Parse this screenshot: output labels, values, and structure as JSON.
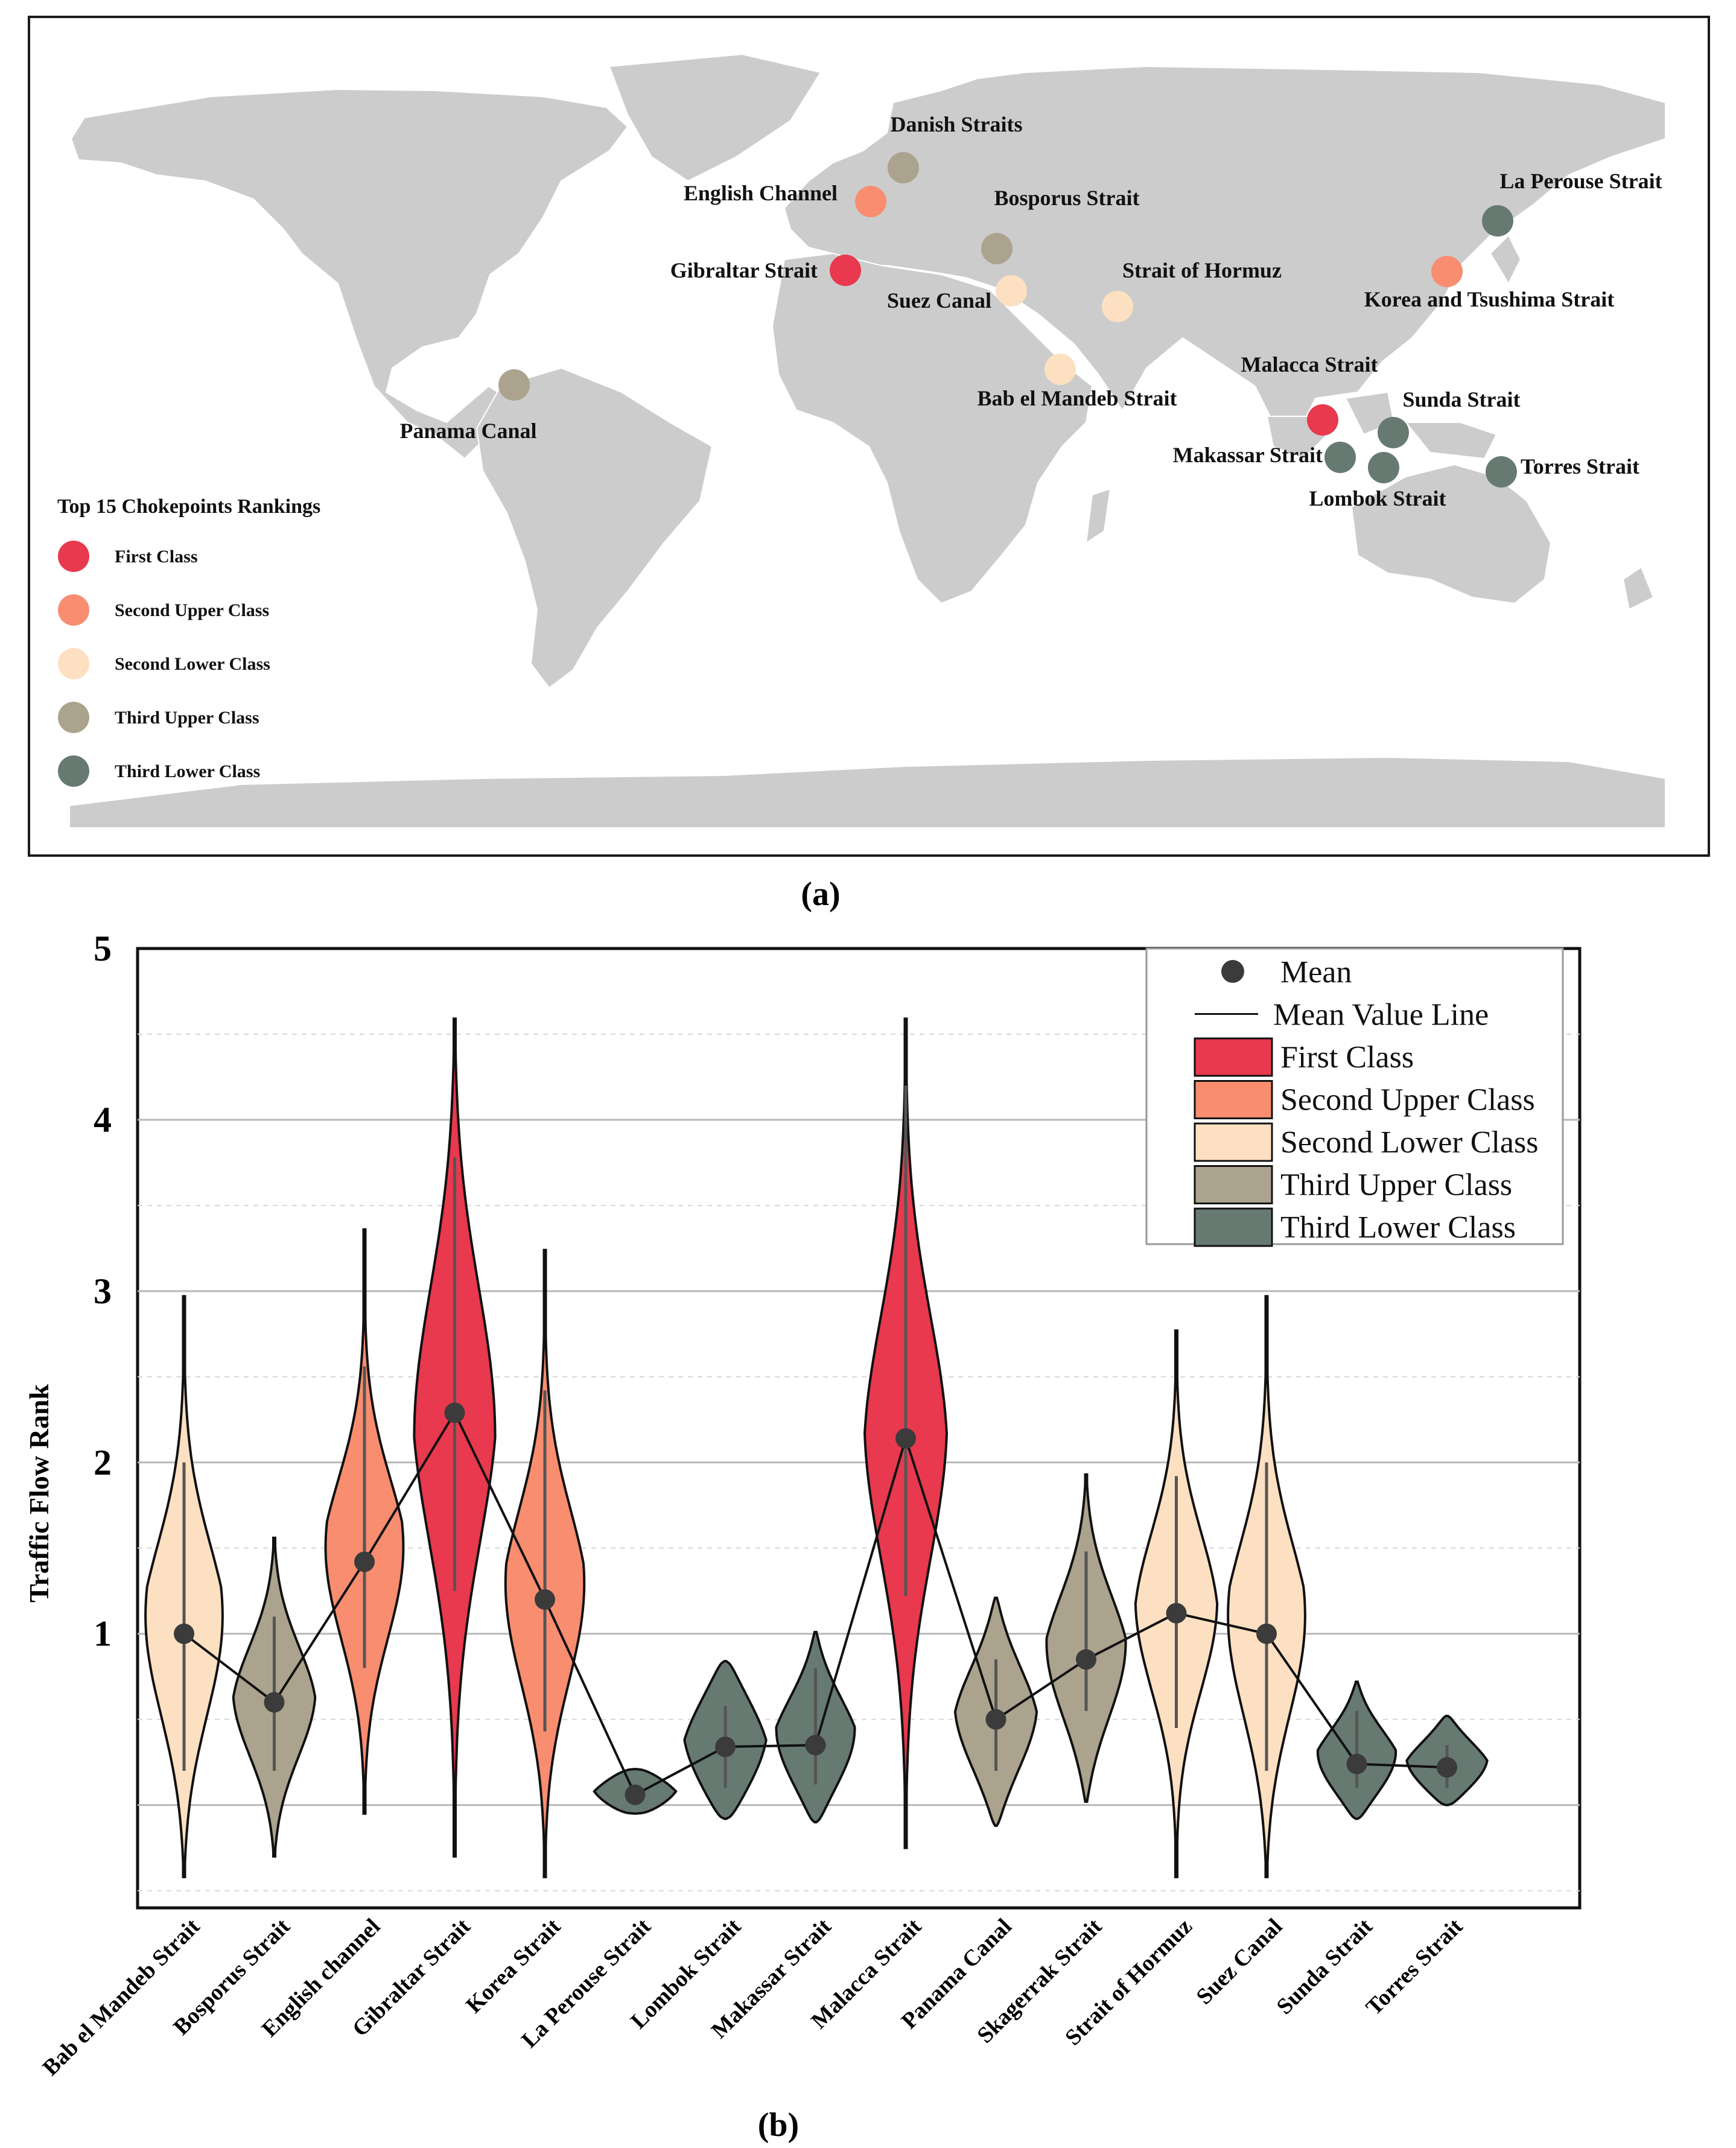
{
  "panel_a": {
    "caption": "(a)",
    "legend_title": "Top 15 Chokepoints Rankings",
    "classes": [
      {
        "key": "first",
        "label": "First Class",
        "color": "#e8394e"
      },
      {
        "key": "second_upper",
        "label": "Second Upper Class",
        "color": "#f98d70"
      },
      {
        "key": "second_lower",
        "label": "Second Lower Class",
        "color": "#fde0c2"
      },
      {
        "key": "third_upper",
        "label": "Third  Upper Class",
        "color": "#aba38d"
      },
      {
        "key": "third_lower",
        "label": "Third  Lower Class",
        "color": "#667a72"
      }
    ],
    "chokepoints": [
      {
        "name": "Danish Straits",
        "class": "third_upper"
      },
      {
        "name": "English Channel",
        "class": "second_upper"
      },
      {
        "name": "Bosporus Strait",
        "class": "third_upper"
      },
      {
        "name": "La Perouse Strait",
        "class": "third_lower"
      },
      {
        "name": "Gibraltar Strait",
        "class": "first"
      },
      {
        "name": "Suez Canal",
        "class": "second_lower"
      },
      {
        "name": "Strait of Hormuz",
        "class": "second_lower"
      },
      {
        "name": "Korea and Tsushima Strait",
        "class": "second_upper"
      },
      {
        "name": "Panama Canal",
        "class": "third_upper"
      },
      {
        "name": "Bab el Mandeb Strait",
        "class": "second_lower"
      },
      {
        "name": "Malacca Strait",
        "class": "first"
      },
      {
        "name": "Sunda Strait",
        "class": "third_lower"
      },
      {
        "name": "Makassar Strait",
        "class": "third_lower"
      },
      {
        "name": "Lombok Strait",
        "class": "third_lower"
      },
      {
        "name": "Torres Strait",
        "class": "third_lower"
      }
    ]
  },
  "chart_data": {
    "type": "violin",
    "caption": "(b)",
    "title": "",
    "xlabel": "",
    "ylabel": "Traffic Flow Rank",
    "ylim": [
      -0.6,
      5.0
    ],
    "yticks": [
      1,
      2,
      3,
      4,
      5
    ],
    "grid": true,
    "legend_position": "top-right",
    "legend": {
      "mean_label": "Mean",
      "line_label": "Mean Value Line",
      "classes": [
        {
          "label": "First Class",
          "color": "#e8394e"
        },
        {
          "label": "Second Upper Class",
          "color": "#f98d70"
        },
        {
          "label": "Second Lower Class",
          "color": "#fde0c2"
        },
        {
          "label": "Third Upper Class",
          "color": "#aba38d"
        },
        {
          "label": "Third Lower Class",
          "color": "#667a72"
        }
      ]
    },
    "categories": [
      "Bab el Mandeb Strait",
      "Bosporus Strait",
      "English channel",
      "Gibraltar Strait",
      "Korea Strait",
      "La Perouse Strait",
      "Lombok Strait",
      "Makassar Strait",
      "Malacca Strait",
      "Panama Canal",
      "Skagerrak Strait",
      "Strait of Hormuz",
      "Suez Canal",
      "Sunda Strait",
      "Torres Strait"
    ],
    "series": [
      {
        "category": "Bab el Mandeb Strait",
        "class": "Second Lower Class",
        "color": "#fde0c2",
        "mean": 1.0,
        "min": -0.42,
        "max": 2.97,
        "whisker": [
          0.2,
          2.0
        ],
        "bw": 0.6
      },
      {
        "category": "Bosporus Strait",
        "class": "Third Upper Class",
        "color": "#aba38d",
        "mean": 0.6,
        "min": -0.3,
        "max": 1.56,
        "whisker": [
          0.2,
          1.1
        ],
        "bw": 0.4
      },
      {
        "category": "English channel",
        "class": "Second Upper Class",
        "color": "#f98d70",
        "mean": 1.42,
        "min": -0.05,
        "max": 3.36,
        "whisker": [
          0.8,
          2.56
        ],
        "bw": 0.55
      },
      {
        "category": "Gibraltar Strait",
        "class": "First Class",
        "color": "#e8394e",
        "mean": 2.29,
        "min": -0.3,
        "max": 4.59,
        "whisker": [
          1.25,
          3.78
        ],
        "bw": 0.9
      },
      {
        "category": "Korea Strait",
        "class": "Second Upper Class",
        "color": "#f98d70",
        "mean": 1.2,
        "min": -0.42,
        "max": 3.24,
        "whisker": [
          0.43,
          2.42
        ],
        "bw": 0.6
      },
      {
        "category": "La Perouse Strait",
        "class": "Third Lower Class",
        "color": "#667a72",
        "mean": 0.06,
        "min": -0.05,
        "max": 0.21,
        "whisker": [
          0.0,
          0.12
        ],
        "bw": 0.2
      },
      {
        "category": "Lombok Strait",
        "class": "Third Lower Class",
        "color": "#667a72",
        "mean": 0.34,
        "min": -0.08,
        "max": 0.84,
        "whisker": [
          0.1,
          0.58
        ],
        "bw": 0.4
      },
      {
        "category": "Makassar Strait",
        "class": "Third Lower Class",
        "color": "#667a72",
        "mean": 0.35,
        "min": -0.1,
        "max": 1.01,
        "whisker": [
          0.12,
          0.8
        ],
        "bw": 0.35
      },
      {
        "category": "Malacca Strait",
        "class": "First Class",
        "color": "#e8394e",
        "mean": 2.14,
        "min": -0.25,
        "max": 4.59,
        "whisker": [
          1.22,
          4.2
        ],
        "bw": 0.85
      },
      {
        "category": "Panama Canal",
        "class": "Third Upper Class",
        "color": "#aba38d",
        "mean": 0.5,
        "min": -0.12,
        "max": 1.21,
        "whisker": [
          0.2,
          0.85
        ],
        "bw": 0.4
      },
      {
        "category": "Skagerrak Strait",
        "class": "Third Upper Class",
        "color": "#aba38d",
        "mean": 0.85,
        "min": 0.02,
        "max": 1.93,
        "whisker": [
          0.55,
          1.48
        ],
        "bw": 0.45
      },
      {
        "category": "Strait of Hormuz",
        "class": "Second Lower Class",
        "color": "#fde0c2",
        "mean": 1.12,
        "min": -0.42,
        "max": 2.77,
        "whisker": [
          0.45,
          1.92
        ],
        "bw": 0.55
      },
      {
        "category": "Suez Canal",
        "class": "Second Lower Class",
        "color": "#fde0c2",
        "mean": 1.0,
        "min": -0.42,
        "max": 2.97,
        "whisker": [
          0.2,
          2.0
        ],
        "bw": 0.6
      },
      {
        "category": "Sunda Strait",
        "class": "Third Lower Class",
        "color": "#667a72",
        "mean": 0.24,
        "min": -0.08,
        "max": 0.72,
        "whisker": [
          0.1,
          0.55
        ],
        "bw": 0.25
      },
      {
        "category": "Torres Strait",
        "class": "Third Lower Class",
        "color": "#667a72",
        "mean": 0.22,
        "min": 0.0,
        "max": 0.52,
        "whisker": [
          0.1,
          0.35
        ],
        "bw": 0.2
      }
    ]
  }
}
